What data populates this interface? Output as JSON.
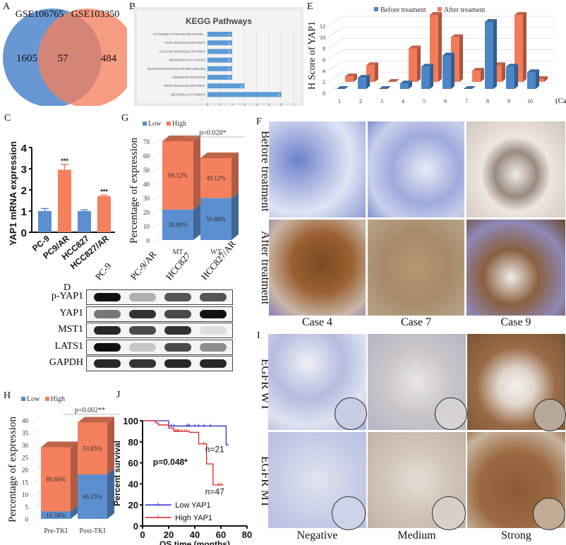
{
  "panels": {
    "A": {
      "label": "A",
      "set1": "GSE106765",
      "set2": "GSE103350",
      "only1": "1605",
      "both": "57",
      "only2": "484",
      "color1": "#5b8fd0",
      "color2": "#f48a6a"
    },
    "B": {
      "label": "B"
    },
    "C": {
      "label": "C"
    },
    "D": {
      "label": "D",
      "lanes": [
        "PC-9",
        "PC-9/AR",
        "HCC827",
        "HCC827/AR"
      ],
      "rows": [
        {
          "name": "p-YAP1",
          "intensity": [
            1.0,
            0.3,
            0.7,
            0.7
          ]
        },
        {
          "name": "YAP1",
          "intensity": [
            0.55,
            0.85,
            0.75,
            1.0
          ]
        },
        {
          "name": "MST1",
          "intensity": [
            0.9,
            0.75,
            0.85,
            0.1
          ]
        },
        {
          "name": "LATS1",
          "intensity": [
            1.0,
            0.2,
            0.75,
            0.45
          ]
        },
        {
          "name": "GAPDH",
          "intensity": [
            0.9,
            0.85,
            0.9,
            0.9
          ]
        }
      ]
    },
    "E": {
      "label": "E"
    },
    "F": {
      "label": "F",
      "row_labels": [
        "Before treatment",
        "After treatment"
      ],
      "col_labels": [
        "Case 4",
        "Case 7",
        "Case 9"
      ]
    },
    "G": {
      "label": "G"
    },
    "H": {
      "label": "H"
    },
    "I": {
      "label": "I",
      "row_labels": [
        "EGFR WT",
        "EGFR MT"
      ],
      "col_labels": [
        "Negative",
        "Medium",
        "Strong"
      ]
    },
    "J": {
      "label": "J"
    }
  },
  "chart_data": [
    {
      "id": "B",
      "type": "bar",
      "orientation": "horizontal",
      "title": "KEGG Pathways",
      "categories": [
        "CYTOKINE-CYTOKINE RECEPTOR...",
        "RAP1 SIGNALING PATHWAY",
        "CALCIUM SIGNALING PATHWAY",
        "MICRORNAS IN CANCER",
        "GLYCEROPHOSPHOLIPID METABOLISM",
        "ADHERENS JUNCTION",
        "HIPPO SIGNALING PATHWAY",
        "METABOLIC PATHWAYS"
      ],
      "values": [
        2,
        2,
        2,
        2,
        2,
        2,
        3,
        6
      ],
      "xlim": [
        0,
        7
      ],
      "xticks": [
        "0",
        "1",
        "2",
        "3",
        "4",
        "5",
        "6",
        "7"
      ],
      "color": "#5b9bd5"
    },
    {
      "id": "C",
      "type": "bar",
      "ylabel": "YAP1 mRNA expression",
      "ylim": [
        0,
        4
      ],
      "yticks": [
        "0",
        "1",
        "2",
        "3",
        "4"
      ],
      "categories": [
        "PC-9",
        "PC9/AR",
        "HCC827",
        "HCC827/AR"
      ],
      "values": [
        1.0,
        2.95,
        1.0,
        1.7
      ],
      "errors": [
        0.12,
        0.25,
        0.06,
        0.05
      ],
      "colors": [
        "#5b8fd0",
        "#f4805e",
        "#5b8fd0",
        "#f4805e"
      ],
      "annotations": [
        "",
        "***",
        "",
        "***"
      ]
    },
    {
      "id": "E",
      "type": "bar",
      "style": "3d-grouped",
      "ylabel": "H Score of YAP1",
      "xlabel": "(Case)",
      "categories": [
        "1",
        "2",
        "3",
        "4",
        "5",
        "6",
        "7",
        "8",
        "9",
        "10"
      ],
      "series": [
        {
          "name": "Before treament",
          "color": "#4a86c8",
          "values": [
            0,
            2,
            0,
            1,
            4,
            6,
            0,
            12,
            4,
            3
          ]
        },
        {
          "name": "After treament",
          "color": "#f27b5b",
          "values": [
            1,
            3,
            0,
            6,
            12,
            8,
            2,
            3,
            12,
            0.5
          ]
        }
      ],
      "ylim": [
        0,
        12
      ],
      "yticks": [
        "0",
        "2",
        "4",
        "6",
        "8",
        "10",
        "12"
      ]
    },
    {
      "id": "G",
      "type": "bar",
      "style": "3d-stacked",
      "ylabel": "Percentage of expression",
      "categories": [
        "MT",
        "WT"
      ],
      "series": [
        {
          "name": "Low",
          "color": "#5b8fd0",
          "values": [
            21.6,
            29.7
          ],
          "labels": [
            "30.88%",
            "50.88%"
          ]
        },
        {
          "name": "High",
          "color": "#f4805e",
          "values": [
            48.4,
            28.3
          ],
          "labels": [
            "69.12%",
            "49.12%"
          ]
        }
      ],
      "ylim": [
        0,
        70
      ],
      "yticks": [
        "0",
        "10",
        "20",
        "30",
        "40",
        "50",
        "60",
        "70"
      ],
      "annotation": "p=0.028*"
    },
    {
      "id": "H",
      "type": "bar",
      "style": "3d-stacked",
      "ylabel": "Percentage of expression",
      "categories": [
        "Pre-TKI",
        "Post-TKI"
      ],
      "series": [
        {
          "name": "Low",
          "color": "#5b8fd0",
          "values": [
            3,
            18
          ],
          "labels": [
            "10.34%",
            "46.15%"
          ]
        },
        {
          "name": "High",
          "color": "#f4805e",
          "values": [
            26,
            21
          ],
          "labels": [
            "89.66%",
            "53.85%"
          ]
        }
      ],
      "ylim": [
        0,
        40
      ],
      "yticks": [
        "0",
        "5",
        "10",
        "15",
        "20",
        "25",
        "30",
        "35",
        "40"
      ],
      "annotation": "p=0.002**"
    },
    {
      "id": "J",
      "type": "line",
      "style": "kaplan-meier",
      "xlabel": "OS time (months)",
      "ylabel": "Percent survival",
      "xlim": [
        0,
        80
      ],
      "ylim": [
        0,
        100
      ],
      "xticks": [
        "0",
        "20",
        "40",
        "60",
        "80"
      ],
      "yticks": [
        "0",
        "20",
        "40",
        "60",
        "80",
        "100"
      ],
      "series": [
        {
          "name": "Low YAP1",
          "color": "#2b2bd6",
          "n_label": "n=21",
          "x": [
            0,
            20,
            20,
            64,
            64,
            66
          ],
          "y": [
            100,
            100,
            95,
            95,
            77,
            77
          ]
        },
        {
          "name": "High YAP1",
          "color": "#e02020",
          "n_label": "n=47",
          "x": [
            0,
            10,
            10,
            12,
            12,
            20,
            20,
            24,
            24,
            36,
            36,
            43,
            43,
            49,
            49,
            54,
            54,
            62
          ],
          "y": [
            100,
            100,
            98,
            98,
            96,
            96,
            93,
            93,
            90,
            90,
            89,
            89,
            78,
            78,
            59,
            59,
            39,
            39
          ]
        }
      ],
      "annotation": "p=0.048*"
    }
  ]
}
